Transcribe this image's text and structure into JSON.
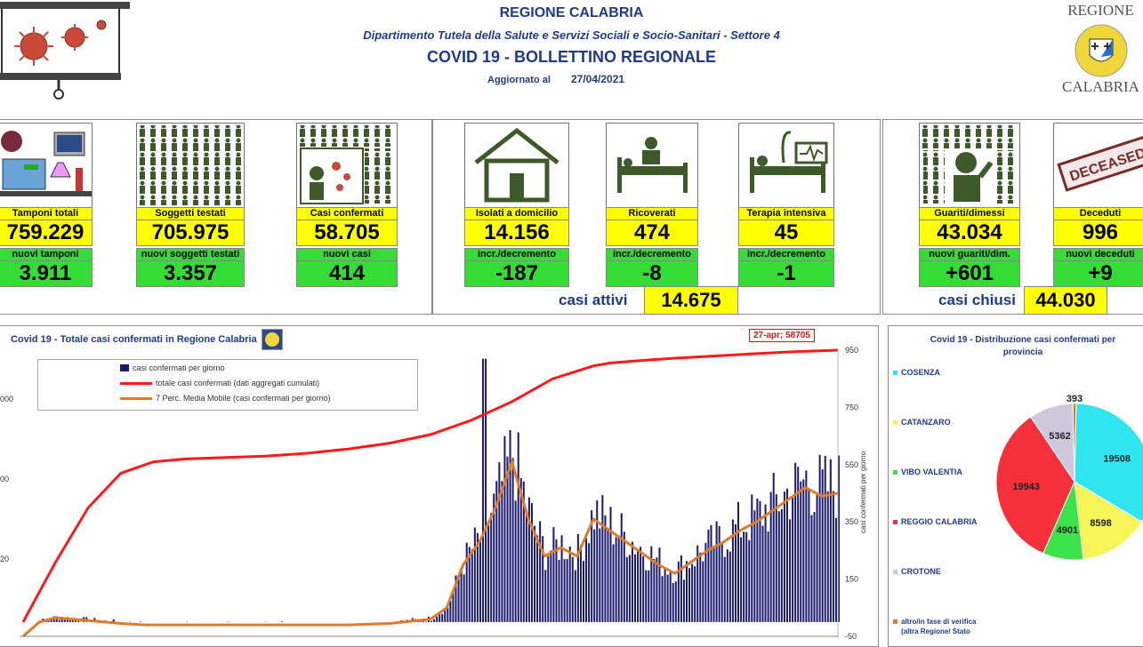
{
  "header": {
    "region": "REGIONE CALABRIA",
    "department": "Dipartimento Tutela della Salute e Servizi Sociali e Socio-Sanitari - Settore 4",
    "title": "COVID 19 - BOLLETTINO REGIONALE",
    "updated_label": "Aggiornato al",
    "updated_date": "27/04/2021"
  },
  "logo": {
    "top": "REGIONE",
    "bottom": "CALABRIA"
  },
  "cards": [
    {
      "label": "Tamponi totali",
      "value": "759.229",
      "sub_label": "nuovi tamponi",
      "sub_value": "3.911",
      "icon": "lab-icon"
    },
    {
      "label": "Soggetti testati",
      "value": "705.975",
      "sub_label": "nuovi soggetti testati",
      "sub_value": "3.357",
      "icon": "people-icon"
    },
    {
      "label": "Casi confermati",
      "value": "58.705",
      "sub_label": "nuovi casi",
      "sub_value": "414",
      "icon": "virus-person-icon"
    },
    {
      "label": "Isolati a domicilio",
      "value": "14.156",
      "sub_label": "incr./decremento",
      "sub_value": "-187",
      "icon": "house-icon"
    },
    {
      "label": "Ricoverati",
      "value": "474",
      "sub_label": "incr./decremento",
      "sub_value": "-8",
      "icon": "hospital-bed-icon"
    },
    {
      "label": "Terapia intensiva",
      "value": "45",
      "sub_label": "incr./decremento",
      "sub_value": "-1",
      "icon": "icu-icon"
    },
    {
      "label": "Guariti/dimessi",
      "value": "43.034",
      "sub_label": "nuovi guariti/dim.",
      "sub_value": "+601",
      "icon": "recovered-icon"
    },
    {
      "label": "Deceduti",
      "value": "996",
      "sub_label": "nuovi deceduti",
      "sub_value": "+9",
      "icon": "deceased-icon"
    }
  ],
  "deceased_stamp": "DECEASED",
  "summary": {
    "active_label": "casi attivi",
    "active_value": "14.675",
    "closed_label": "casi chiusi",
    "closed_value": "44.030"
  },
  "chart_data": [
    {
      "type": "line",
      "title": "Covid 19 - Totale casi confermati in Regione Calabria",
      "annotation": "27-apr; 58705",
      "legend": [
        {
          "name": "casi confermati per giorno",
          "color": "#1a1a6e"
        },
        {
          "name": "totale casi confermati (dati aggregati cumulati)",
          "color": "#ff1a1a"
        },
        {
          "name": "7 Perc. Media Mobile (casi confermati per giorno)",
          "color": "#e07b2a"
        }
      ],
      "y2_label": "casi confermati per giorno",
      "y2_ticks": [
        "950",
        "750",
        "550",
        "350",
        "150",
        "-50"
      ],
      "y2_lim": [
        -50,
        950
      ],
      "y_ticks_left": [
        "000",
        "00",
        "20"
      ],
      "series": [
        {
          "name": "totale casi confermati (dati aggregati cumulati)",
          "x": [
            0,
            4,
            8,
            12,
            16,
            20,
            25,
            30,
            35,
            40,
            45,
            50,
            55,
            60,
            65,
            70,
            72,
            75,
            80,
            85,
            90,
            95,
            100
          ],
          "values": [
            0,
            210,
            400,
            520,
            560,
            570,
            575,
            580,
            590,
            605,
            625,
            655,
            705,
            770,
            850,
            895,
            905,
            912,
            922,
            930,
            938,
            945,
            950
          ]
        },
        {
          "name": "7 Perc. Media Mobile (casi confermati per giorno)",
          "x": [
            0,
            2,
            4,
            6,
            8,
            10,
            12,
            15,
            20,
            25,
            30,
            35,
            40,
            45,
            50,
            52,
            54,
            56,
            58,
            60,
            62,
            64,
            66,
            68,
            70,
            72,
            74,
            76,
            78,
            80,
            82,
            84,
            86,
            88,
            90,
            92,
            94,
            96,
            98,
            100
          ],
          "values": [
            -50,
            0,
            15,
            10,
            5,
            0,
            -5,
            -10,
            -10,
            -10,
            -10,
            -10,
            -10,
            -5,
            10,
            50,
            200,
            280,
            400,
            560,
            360,
            230,
            260,
            230,
            360,
            320,
            280,
            240,
            200,
            170,
            210,
            250,
            280,
            320,
            350,
            390,
            430,
            470,
            440,
            450
          ]
        }
      ]
    },
    {
      "type": "pie",
      "title": "Covid 19 - Distribuzione casi confermati per provincia",
      "categories": [
        "COSENZA",
        "CATANZARO",
        "VIBO VALENTIA",
        "REGGIO CALABRIA",
        "CROTONE",
        "altro/in fase di verifica (altra Regione/ Stato"
      ],
      "values": [
        19508,
        8598,
        4901,
        19943,
        5362,
        393
      ],
      "colors": [
        "#2fe6f0",
        "#f5f55a",
        "#3be34a",
        "#f5303a",
        "#cfc8dc",
        "#e07b2a"
      ]
    }
  ]
}
